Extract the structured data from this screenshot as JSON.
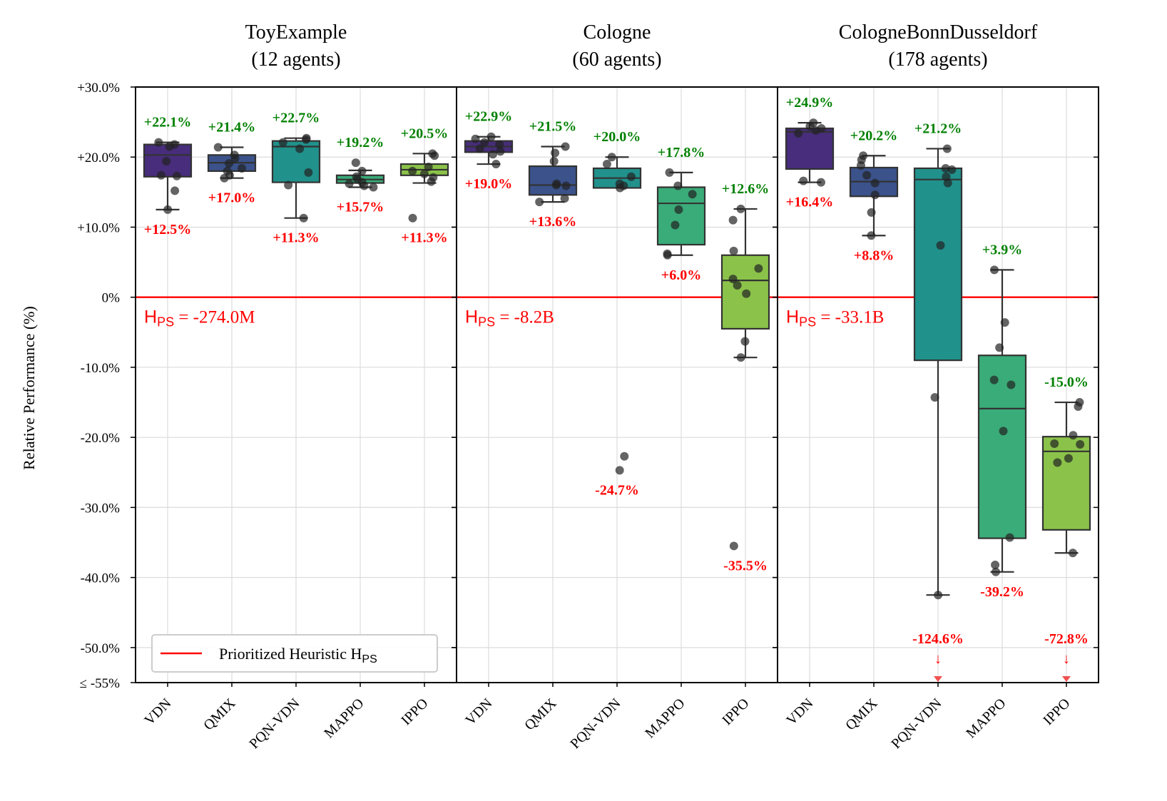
{
  "figure": {
    "ylabel": "Relative Performance (%)",
    "y_ticks": [
      30,
      20,
      10,
      0,
      -10,
      -20,
      -30,
      -40,
      -50,
      -55
    ],
    "y_tick_labels": [
      "+30.0%",
      "+20.0%",
      "+10.0%",
      "0%",
      "-10.0%",
      "-20.0%",
      "-30.0%",
      "-40.0%",
      "-50.0%",
      "≤ -55%"
    ],
    "legend": {
      "label": "Prioritized Heuristic H",
      "sub": "PS",
      "placement": "lower-left",
      "color": "#ff0000"
    },
    "heuristic_prefix": "H",
    "heuristic_sub": "PS",
    "colors": {
      "VDN": "#472d7b",
      "QMIX": "#3b528b",
      "PQN-VDN": "#21918c",
      "MAPPO": "#3aac79",
      "IPPO": "#8bc34a",
      "max_label": "#008000",
      "min_label": "#ff0000",
      "heuristic_line": "#ff0000",
      "points": "#222222",
      "box_edge": "#333333"
    }
  },
  "chart_data": [
    {
      "type": "box",
      "title": "ToyExample",
      "subtitle": "(12 agents)",
      "ylim": [
        -55,
        30
      ],
      "heuristic_value": 0,
      "heuristic_label": " = -274.0M",
      "categories": [
        "VDN",
        "QMIX",
        "PQN-VDN",
        "MAPPO",
        "IPPO"
      ],
      "series": [
        {
          "name": "VDN",
          "q1": 17.2,
          "median": 20.3,
          "q3": 21.8,
          "whisker_low": 12.5,
          "whisker_high": 22.1,
          "max_label": "+22.1%",
          "min_label": "+12.5%",
          "points": [
            22.1,
            21.8,
            21.5,
            19.4,
            17.4,
            17.3,
            15.2,
            12.5
          ]
        },
        {
          "name": "QMIX",
          "q1": 18.0,
          "median": 19.2,
          "q3": 20.3,
          "whisker_low": 17.0,
          "whisker_high": 21.4,
          "max_label": "+21.4%",
          "min_label": "+17.0%",
          "points": [
            21.4,
            20.3,
            19.8,
            19.1,
            18.4,
            18.0,
            17.4,
            17.0
          ]
        },
        {
          "name": "PQN-VDN",
          "q1": 16.4,
          "median": 21.5,
          "q3": 22.3,
          "whisker_low": 11.3,
          "whisker_high": 22.7,
          "max_label": "+22.7%",
          "min_label": "+11.3%",
          "points": [
            22.7,
            22.5,
            22.1,
            21.2,
            17.8,
            16.0,
            11.3
          ]
        },
        {
          "name": "MAPPO",
          "q1": 16.3,
          "median": 16.8,
          "q3": 17.4,
          "whisker_low": 15.7,
          "whisker_high": 18.1,
          "max_label": "+19.2%",
          "min_label": "+15.7%",
          "points": [
            19.2,
            18.0,
            17.2,
            16.8,
            16.4,
            16.2,
            15.9,
            15.7
          ]
        },
        {
          "name": "IPPO",
          "q1": 17.4,
          "median": 18.2,
          "q3": 19.0,
          "whisker_low": 16.3,
          "whisker_high": 20.5,
          "max_label": "+20.5%",
          "min_label": "+11.3%",
          "points": [
            20.5,
            20.2,
            18.6,
            18.0,
            17.6,
            17.1,
            16.5,
            11.3
          ]
        }
      ]
    },
    {
      "type": "box",
      "title": "Cologne",
      "subtitle": "(60 agents)",
      "ylim": [
        -55,
        30
      ],
      "heuristic_value": 0,
      "heuristic_label": " = -8.2B",
      "categories": [
        "VDN",
        "QMIX",
        "PQN-VDN",
        "MAPPO",
        "IPPO"
      ],
      "series": [
        {
          "name": "VDN",
          "q1": 20.7,
          "median": 21.5,
          "q3": 22.3,
          "whisker_low": 19.0,
          "whisker_high": 22.9,
          "max_label": "+22.9%",
          "min_label": "+19.0%",
          "points": [
            22.9,
            22.6,
            22.1,
            21.8,
            21.2,
            20.8,
            20.4,
            19.0
          ]
        },
        {
          "name": "QMIX",
          "q1": 14.6,
          "median": 16.0,
          "q3": 18.7,
          "whisker_low": 13.6,
          "whisker_high": 21.5,
          "max_label": "+21.5%",
          "min_label": "+13.6%",
          "points": [
            21.5,
            20.6,
            19.4,
            16.2,
            16.0,
            15.9,
            14.1,
            13.6
          ]
        },
        {
          "name": "PQN-VDN",
          "q1": 15.6,
          "median": 17.0,
          "q3": 18.4,
          "whisker_low": 15.6,
          "whisker_high": 20.0,
          "max_label": "+20.0%",
          "min_label": "-24.7%",
          "points": [
            20.0,
            19.0,
            17.2,
            16.2,
            15.9,
            15.6,
            -22.7,
            -24.7
          ]
        },
        {
          "name": "MAPPO",
          "q1": 7.5,
          "median": 13.4,
          "q3": 15.7,
          "whisker_low": 6.0,
          "whisker_high": 17.8,
          "max_label": "+17.8%",
          "min_label": "+6.0%",
          "points": [
            17.8,
            15.9,
            14.7,
            12.5,
            10.3,
            6.2,
            6.0
          ]
        },
        {
          "name": "IPPO",
          "q1": -4.5,
          "median": 2.4,
          "q3": 6.0,
          "whisker_low": -8.6,
          "whisker_high": 12.6,
          "max_label": "+12.6%",
          "min_label": "-35.5%",
          "points": [
            12.6,
            11.0,
            6.6,
            4.1,
            2.6,
            1.7,
            0.5,
            -6.3,
            -8.6,
            -35.5
          ]
        }
      ]
    },
    {
      "type": "box",
      "title": "CologneBonnDusseldorf",
      "subtitle": "(178 agents)",
      "ylim": [
        -55,
        30
      ],
      "heuristic_value": 0,
      "heuristic_label": " = -33.1B",
      "categories": [
        "VDN",
        "QMIX",
        "PQN-VDN",
        "MAPPO",
        "IPPO"
      ],
      "series": [
        {
          "name": "VDN",
          "q1": 18.3,
          "median": 23.6,
          "q3": 24.1,
          "whisker_low": 16.4,
          "whisker_high": 24.9,
          "max_label": "+24.9%",
          "min_label": "+16.4%",
          "points": [
            24.9,
            24.4,
            24.1,
            23.8,
            23.4,
            16.6,
            16.4
          ]
        },
        {
          "name": "QMIX",
          "q1": 14.4,
          "median": 16.5,
          "q3": 18.5,
          "whisker_low": 8.8,
          "whisker_high": 20.2,
          "max_label": "+20.2%",
          "min_label": "+8.8%",
          "points": [
            20.2,
            19.6,
            18.8,
            17.4,
            16.3,
            14.6,
            12.1,
            8.8
          ]
        },
        {
          "name": "PQN-VDN",
          "q1": -9.0,
          "median": 16.8,
          "q3": 18.4,
          "whisker_low": -42.5,
          "whisker_high": 21.2,
          "max_label": "+21.2%",
          "min_label": "-124.6%",
          "points": [
            21.2,
            18.4,
            18.2,
            17.2,
            16.3,
            7.4,
            -14.3,
            -42.5
          ],
          "offscale": true
        },
        {
          "name": "MAPPO",
          "q1": -34.4,
          "median": -15.9,
          "q3": -8.3,
          "whisker_low": -39.2,
          "whisker_high": 3.9,
          "max_label": "+3.9%",
          "min_label": "-39.2%",
          "points": [
            3.9,
            -3.6,
            -7.2,
            -11.8,
            -12.5,
            -19.1,
            -34.3,
            -38.2,
            -39.2
          ]
        },
        {
          "name": "IPPO",
          "q1": -33.2,
          "median": -22.0,
          "q3": -19.9,
          "whisker_low": -36.5,
          "whisker_high": -15.0,
          "max_label": "-15.0%",
          "min_label": "-72.8%",
          "points": [
            -15.0,
            -15.6,
            -19.7,
            -20.9,
            -21.0,
            -23.0,
            -23.6,
            -36.5
          ],
          "offscale": true
        }
      ]
    }
  ]
}
